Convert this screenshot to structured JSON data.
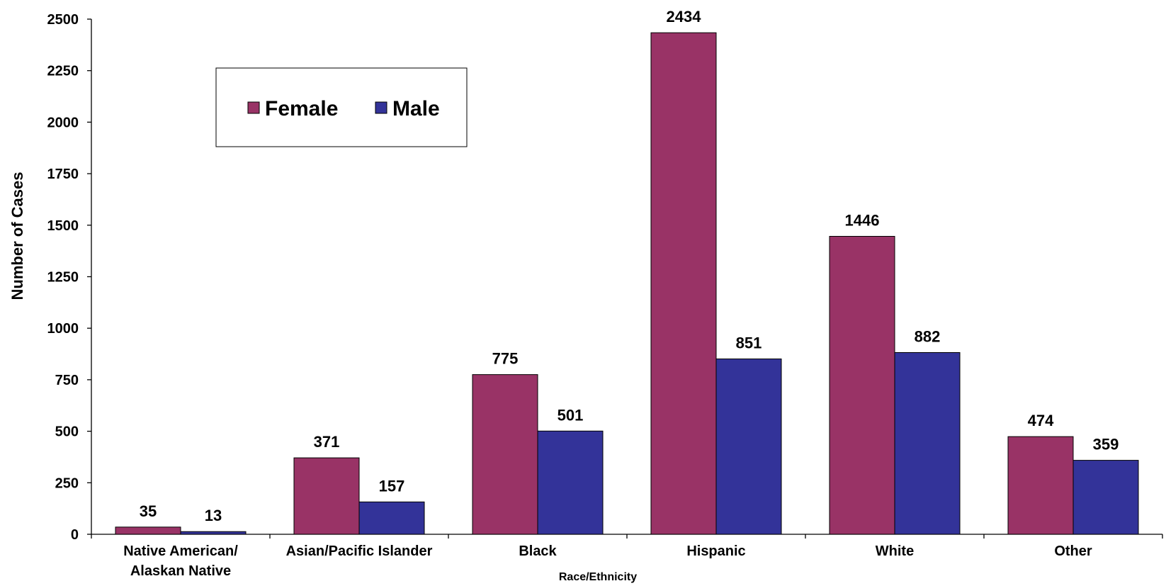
{
  "chart_data": {
    "type": "bar",
    "title": "",
    "xlabel": "Race/Ethnicity",
    "ylabel": "Number of Cases",
    "ylim": [
      0,
      2500
    ],
    "yticks": [
      0,
      250,
      500,
      750,
      1000,
      1250,
      1500,
      1750,
      2000,
      2250,
      2500
    ],
    "categories": [
      [
        "Native American/",
        "Alaskan Native"
      ],
      [
        "Asian/Pacific Islander"
      ],
      [
        "Black"
      ],
      [
        "Hispanic"
      ],
      [
        "White"
      ],
      [
        "Other"
      ]
    ],
    "series": [
      {
        "name": "Female",
        "color": "#993366",
        "values": [
          35,
          371,
          775,
          2434,
          1446,
          474
        ]
      },
      {
        "name": "Male",
        "color": "#333399",
        "values": [
          13,
          157,
          501,
          851,
          882,
          359
        ]
      }
    ],
    "grid": false,
    "legend_position": "top-left"
  }
}
